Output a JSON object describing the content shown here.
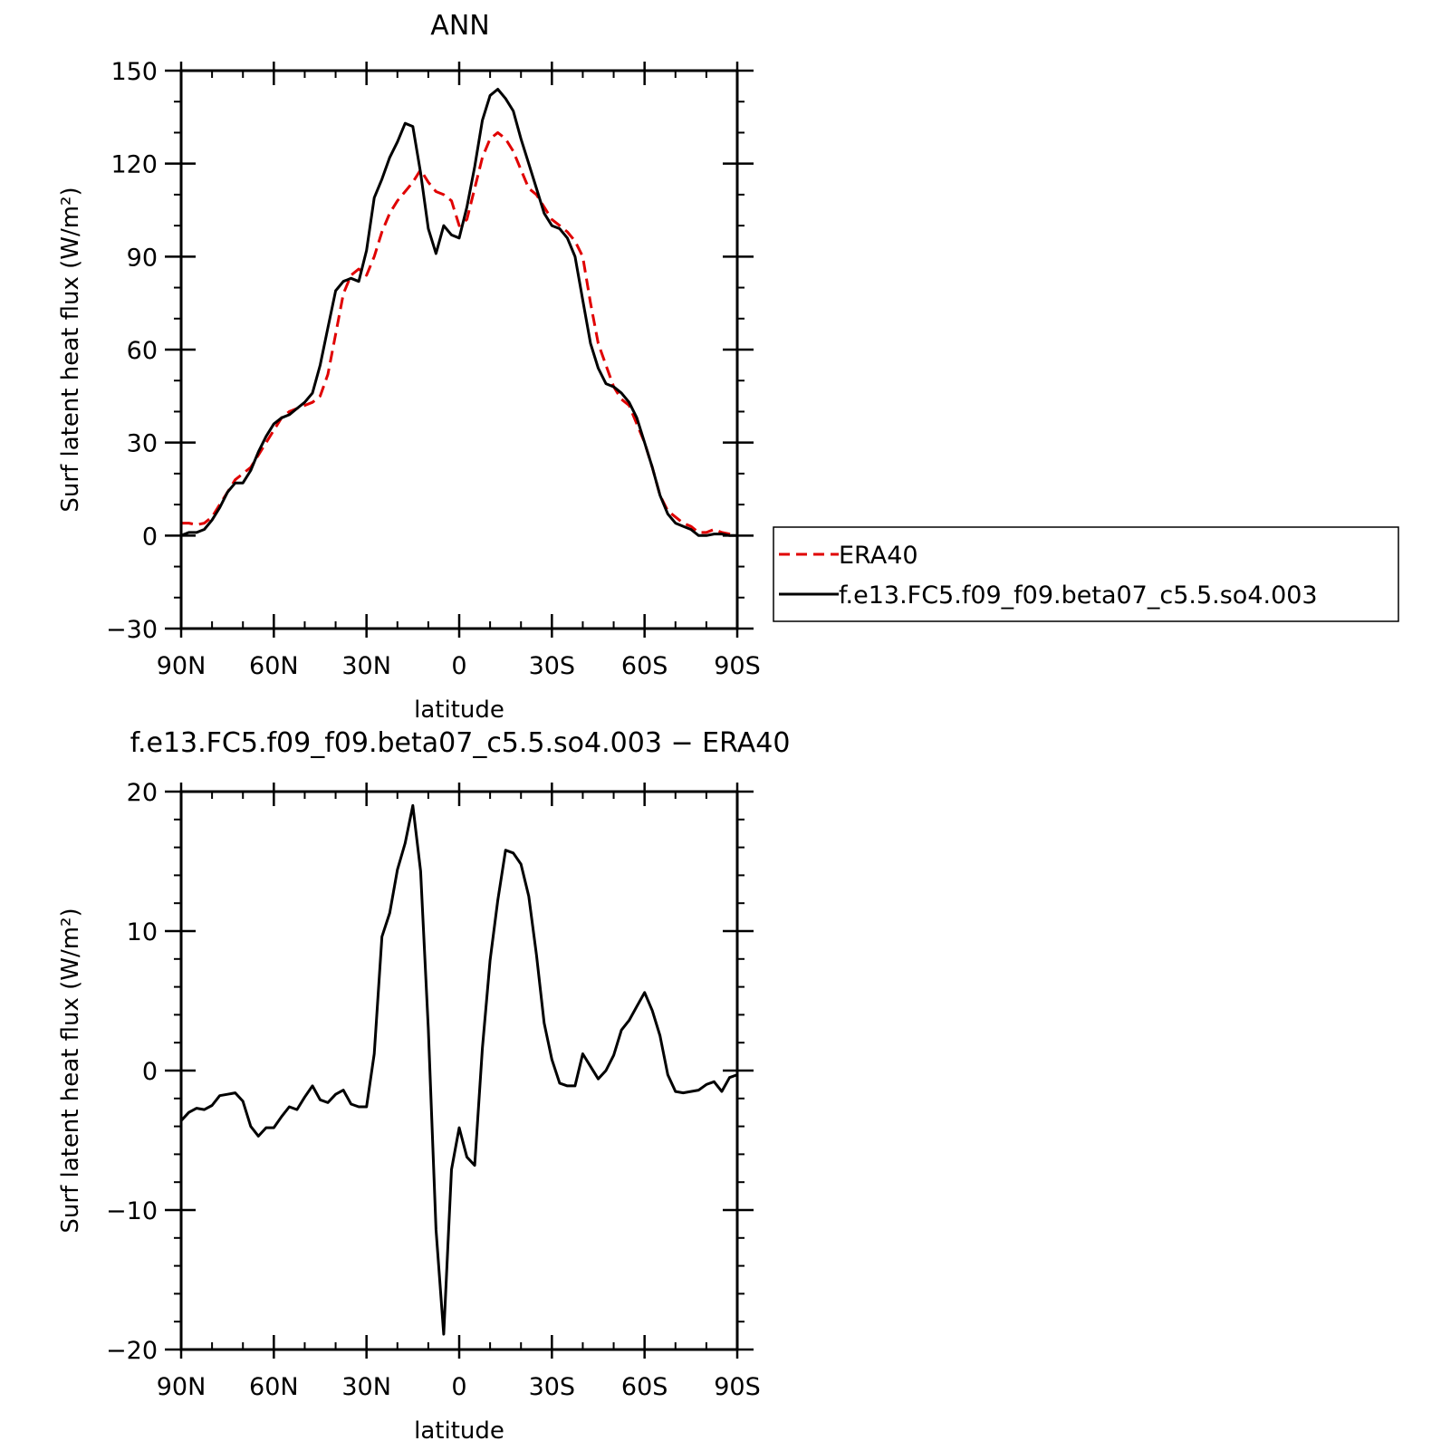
{
  "chart_data": [
    {
      "type": "line",
      "title": "ANN",
      "xlabel": "latitude",
      "ylabel": "Surf latent heat flux (W/m²)",
      "xlim": [
        -90,
        90
      ],
      "ylim": [
        -30,
        150
      ],
      "x_direction": "north-to-south",
      "xticks": [
        -90,
        -60,
        -30,
        0,
        30,
        60,
        90
      ],
      "xtick_labels": [
        "90N",
        "60N",
        "30N",
        "0",
        "30S",
        "60S",
        "90S"
      ],
      "yticks": [
        -30,
        0,
        30,
        60,
        90,
        120,
        150
      ],
      "ytick_labels": [
        "−30",
        "0",
        "30",
        "60",
        "90",
        "120",
        "150"
      ],
      "grid": false,
      "legend_position": "outside-right",
      "series": [
        {
          "name": "ERA40",
          "color": "#e00000",
          "dash": "dashed",
          "x": [
            -90,
            -87.5,
            -85,
            -82.5,
            -80,
            -77.5,
            -75,
            -72.5,
            -70,
            -67.5,
            -65,
            -62.5,
            -60,
            -57.5,
            -55,
            -52.5,
            -50,
            -47.5,
            -45,
            -42.5,
            -40,
            -37.5,
            -35,
            -32.5,
            -30,
            -27.5,
            -25,
            -22.5,
            -20,
            -17.5,
            -15,
            -12.5,
            -10,
            -7.5,
            -5,
            -2.5,
            0,
            2.5,
            5,
            7.5,
            10,
            12.5,
            15,
            17.5,
            20,
            22.5,
            25,
            27.5,
            30,
            32.5,
            35,
            37.5,
            40,
            42.5,
            45,
            47.5,
            50,
            52.5,
            55,
            57.5,
            60,
            62.5,
            65,
            67.5,
            70,
            72.5,
            75,
            77.5,
            80,
            82.5,
            85,
            87.5,
            90
          ],
          "y": [
            4,
            4,
            3.5,
            4,
            6,
            10,
            14,
            18,
            20,
            22,
            26,
            30,
            34,
            38,
            40,
            41,
            42,
            43,
            45,
            52,
            65,
            78,
            84,
            86,
            84,
            90,
            98,
            104,
            108,
            111,
            114,
            118,
            114,
            111,
            110,
            108,
            100,
            102,
            112,
            122,
            128,
            130,
            128,
            124,
            118,
            112,
            110,
            106,
            102,
            100,
            98,
            95,
            90,
            75,
            62,
            55,
            48,
            44,
            42,
            36,
            30,
            22,
            13,
            8,
            6,
            4,
            3,
            1,
            1,
            2,
            1,
            0.5,
            0
          ],
          "values": [
            4,
            4,
            3.5,
            4,
            6,
            10,
            14,
            18,
            20,
            22,
            26,
            30,
            34,
            38,
            40,
            41,
            42,
            43,
            45,
            52,
            65,
            78,
            84,
            86,
            84,
            90,
            98,
            104,
            108,
            111,
            114,
            118,
            114,
            111,
            110,
            108,
            100,
            102,
            112,
            122,
            128,
            130,
            128,
            124,
            118,
            112,
            110,
            106,
            102,
            100,
            98,
            95,
            90,
            75,
            62,
            55,
            48,
            44,
            42,
            36,
            30,
            22,
            13,
            8,
            6,
            4,
            3,
            1,
            1,
            2,
            1,
            0.5,
            0
          ]
        },
        {
          "name": "f.e13.FC5.f09_f09.beta07_c5.5.so4.003",
          "color": "#000000",
          "dash": "solid",
          "x": [
            -90,
            -87.5,
            -85,
            -82.5,
            -80,
            -77.5,
            -75,
            -72.5,
            -70,
            -67.5,
            -65,
            -62.5,
            -60,
            -57.5,
            -55,
            -52.5,
            -50,
            -47.5,
            -45,
            -42.5,
            -40,
            -37.5,
            -35,
            -32.5,
            -30,
            -27.5,
            -25,
            -22.5,
            -20,
            -17.5,
            -15,
            -12.5,
            -10,
            -7.5,
            -5,
            -2.5,
            0,
            2.5,
            5,
            7.5,
            10,
            12.5,
            15,
            17.5,
            20,
            22.5,
            25,
            27.5,
            30,
            32.5,
            35,
            37.5,
            40,
            42.5,
            45,
            47.5,
            50,
            52.5,
            55,
            57.5,
            60,
            62.5,
            65,
            67.5,
            70,
            72.5,
            75,
            77.5,
            80,
            82.5,
            85,
            87.5,
            90
          ],
          "y": [
            0,
            1,
            1,
            2,
            5,
            9,
            14,
            17,
            17,
            21,
            27,
            32,
            36,
            38,
            39,
            41,
            43,
            46,
            55,
            67,
            79,
            82,
            83,
            82,
            92,
            109,
            115,
            122,
            127,
            133,
            132,
            117,
            99,
            91,
            100,
            97,
            96,
            106,
            119,
            134,
            142,
            144,
            141,
            137,
            128,
            120,
            112,
            104,
            100,
            99,
            96,
            90,
            76,
            62,
            54,
            49,
            48,
            46,
            43,
            38,
            30,
            22,
            13,
            7,
            4,
            3,
            2,
            0,
            0,
            0.5,
            0.5,
            0,
            0
          ],
          "values": [
            0,
            1,
            1,
            2,
            5,
            9,
            14,
            17,
            17,
            21,
            27,
            32,
            36,
            38,
            39,
            41,
            43,
            46,
            55,
            67,
            79,
            82,
            83,
            82,
            92,
            109,
            115,
            122,
            127,
            133,
            132,
            117,
            99,
            91,
            100,
            97,
            96,
            106,
            119,
            134,
            142,
            144,
            141,
            137,
            128,
            120,
            112,
            104,
            100,
            99,
            96,
            90,
            76,
            62,
            54,
            49,
            48,
            46,
            43,
            38,
            30,
            22,
            13,
            7,
            4,
            3,
            2,
            0,
            0,
            0.5,
            0.5,
            0,
            0
          ]
        }
      ]
    },
    {
      "type": "line",
      "title": "f.e13.FC5.f09_f09.beta07_c5.5.so4.003 − ERA40",
      "xlabel": "latitude",
      "ylabel": "Surf latent heat flux (W/m²)",
      "xlim": [
        -90,
        90
      ],
      "ylim": [
        -20,
        20
      ],
      "x_direction": "north-to-south",
      "xticks": [
        -90,
        -60,
        -30,
        0,
        30,
        60,
        90
      ],
      "xtick_labels": [
        "90N",
        "60N",
        "30N",
        "0",
        "30S",
        "60S",
        "90S"
      ],
      "yticks": [
        -20,
        -10,
        0,
        10,
        20
      ],
      "ytick_labels": [
        "−20",
        "−10",
        "0",
        "10",
        "20"
      ],
      "grid": false,
      "series": [
        {
          "color": "#000000",
          "dash": "solid",
          "x": [
            -90,
            -87.5,
            -85,
            -82.5,
            -80,
            -77.5,
            -75,
            -72.5,
            -70,
            -67.5,
            -65,
            -62.5,
            -60,
            -57.5,
            -55,
            -52.5,
            -50,
            -47.5,
            -45,
            -42.5,
            -40,
            -37.5,
            -35,
            -32.5,
            -30,
            -27.5,
            -25,
            -22.5,
            -20,
            -17.5,
            -15,
            -12.5,
            -10,
            -7.5,
            -5,
            -2.5,
            0,
            2.5,
            5,
            7.5,
            10,
            12.5,
            15,
            17.5,
            20,
            22.5,
            25,
            27.5,
            30,
            32.5,
            35,
            37.5,
            40,
            42.5,
            45,
            47.5,
            50,
            52.5,
            55,
            57.5,
            60,
            62.5,
            65,
            67.5,
            70,
            72.5,
            75,
            77.5,
            80,
            82.5,
            85,
            87.5,
            90
          ],
          "y": [
            -3.6,
            -3.0,
            -2.7,
            -2.8,
            -2.5,
            -1.8,
            -1.7,
            -1.6,
            -2.2,
            -4.0,
            -4.7,
            -4.1,
            -4.1,
            -3.3,
            -2.6,
            -2.8,
            -1.9,
            -1.1,
            -2.1,
            -2.3,
            -1.7,
            -1.4,
            -2.4,
            -2.6,
            -2.6,
            1.2,
            9.6,
            11.3,
            14.4,
            16.3,
            19.0,
            14.3,
            3.0,
            -11.4,
            -18.9,
            -7.1,
            -4.1,
            -6.2,
            -6.8,
            1.6,
            7.9,
            12.2,
            15.8,
            15.6,
            14.8,
            12.5,
            8.3,
            3.4,
            0.8,
            -0.9,
            -1.1,
            -1.1,
            1.2,
            0.3,
            -0.6,
            0.0,
            1.1,
            2.9,
            3.6,
            4.6,
            5.6,
            4.3,
            2.5,
            -0.3,
            -1.5,
            -1.6,
            -1.5,
            -1.4,
            -1.0,
            -0.8,
            -1.5,
            -0.5,
            -0.3
          ],
          "values": [
            -3.6,
            -3.0,
            -2.7,
            -2.8,
            -2.5,
            -1.8,
            -1.7,
            -1.6,
            -2.2,
            -4.0,
            -4.7,
            -4.1,
            -4.1,
            -3.3,
            -2.6,
            -2.8,
            -1.9,
            -1.1,
            -2.1,
            -2.3,
            -1.7,
            -1.4,
            -2.4,
            -2.6,
            -2.6,
            1.2,
            9.6,
            11.3,
            14.4,
            16.3,
            19.0,
            14.3,
            3.0,
            -11.4,
            -18.9,
            -7.1,
            -4.1,
            -6.2,
            -6.8,
            1.6,
            7.9,
            12.2,
            15.8,
            15.6,
            14.8,
            12.5,
            8.3,
            3.4,
            0.8,
            -0.9,
            -1.1,
            -1.1,
            1.2,
            0.3,
            -0.6,
            0.0,
            1.1,
            2.9,
            3.6,
            4.6,
            5.6,
            4.3,
            2.5,
            -0.3,
            -1.5,
            -1.6,
            -1.5,
            -1.4,
            -1.0,
            -0.8,
            -1.5,
            -0.5,
            -0.3
          ]
        }
      ]
    }
  ]
}
